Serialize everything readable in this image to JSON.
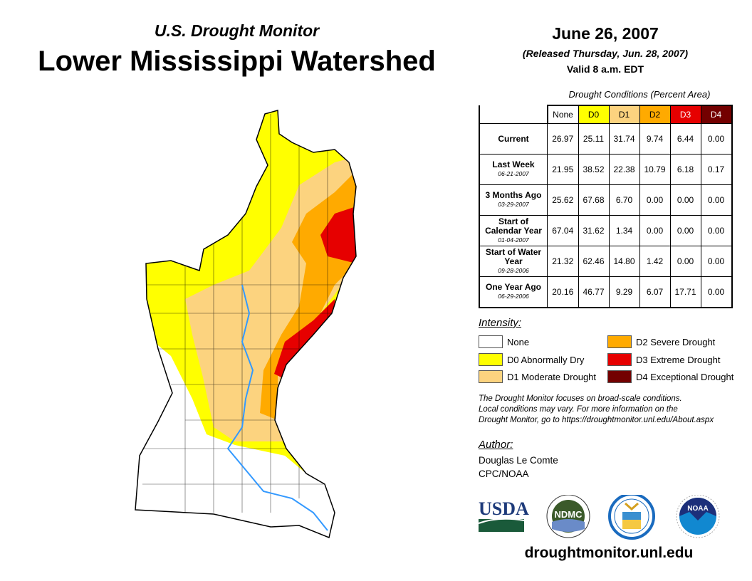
{
  "header": {
    "subtitle": "U.S. Drought Monitor",
    "title": "Lower Mississippi Watershed",
    "date": "June 26, 2007",
    "released": "(Released Thursday, Jun. 28, 2007)",
    "valid": "Valid 8 a.m. EDT"
  },
  "table": {
    "caption": "Drought Conditions (Percent Area)",
    "columns": [
      "None",
      "D0",
      "D1",
      "D2",
      "D3",
      "D4"
    ],
    "rows": [
      {
        "label": "Current",
        "date": "",
        "values": [
          "26.97",
          "25.11",
          "31.74",
          "9.74",
          "6.44",
          "0.00"
        ]
      },
      {
        "label": "Last Week",
        "date": "06-21-2007",
        "values": [
          "21.95",
          "38.52",
          "22.38",
          "10.79",
          "6.18",
          "0.17"
        ]
      },
      {
        "label": "3 Months Ago",
        "date": "03-29-2007",
        "values": [
          "25.62",
          "67.68",
          "6.70",
          "0.00",
          "0.00",
          "0.00"
        ]
      },
      {
        "label": "Start of Calendar Year",
        "date": "01-04-2007",
        "values": [
          "67.04",
          "31.62",
          "1.34",
          "0.00",
          "0.00",
          "0.00"
        ]
      },
      {
        "label": "Start of Water Year",
        "date": "09-28-2006",
        "values": [
          "21.32",
          "62.46",
          "14.80",
          "1.42",
          "0.00",
          "0.00"
        ]
      },
      {
        "label": "One Year Ago",
        "date": "06-29-2006",
        "values": [
          "20.16",
          "46.77",
          "9.29",
          "6.07",
          "17.71",
          "0.00"
        ]
      }
    ]
  },
  "legend": {
    "title": "Intensity:",
    "items": [
      {
        "label": "None",
        "color": "#ffffff"
      },
      {
        "label": "D0 Abnormally Dry",
        "color": "#ffff00"
      },
      {
        "label": "D1 Moderate Drought",
        "color": "#fcd37f"
      },
      {
        "label": "D2 Severe Drought",
        "color": "#ffaa00"
      },
      {
        "label": "D3 Extreme Drought",
        "color": "#e60000"
      },
      {
        "label": "D4 Exceptional Drought",
        "color": "#730000"
      }
    ]
  },
  "note": [
    "The Drought Monitor focuses on broad-scale conditions.",
    "Local conditions may vary. For more information on the",
    "Drought Monitor, go to https://droughtmonitor.unl.edu/About.aspx"
  ],
  "author": {
    "title": "Author:",
    "name": "Douglas Le Comte",
    "org": "CPC/NOAA"
  },
  "logos": {
    "usda": "USDA",
    "ndmc": "NDMC",
    "noaa": "NOAA"
  },
  "url": "droughtmonitor.unl.edu"
}
